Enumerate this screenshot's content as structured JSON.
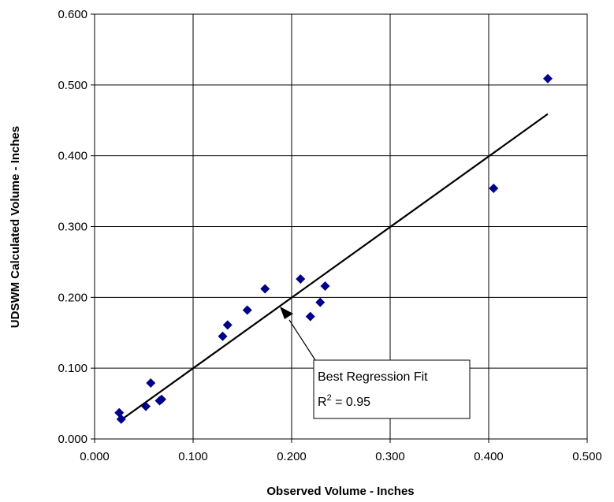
{
  "chart_data": {
    "type": "scatter",
    "title": "",
    "xlabel": "Observed Volume - Inches",
    "ylabel": "UDSWM Calculated Volume - Inches",
    "xlim": [
      0.0,
      0.5
    ],
    "ylim": [
      0.0,
      0.6
    ],
    "grid": true,
    "x_ticks": [
      "0.000",
      "0.100",
      "0.200",
      "0.300",
      "0.400",
      "0.500"
    ],
    "y_ticks": [
      "0.000",
      "0.100",
      "0.200",
      "0.300",
      "0.400",
      "0.500",
      "0.600"
    ],
    "marker_color": "#00008B",
    "points": [
      {
        "x": 0.025,
        "y": 0.037
      },
      {
        "x": 0.027,
        "y": 0.028
      },
      {
        "x": 0.052,
        "y": 0.046
      },
      {
        "x": 0.057,
        "y": 0.079
      },
      {
        "x": 0.066,
        "y": 0.054
      },
      {
        "x": 0.068,
        "y": 0.056
      },
      {
        "x": 0.13,
        "y": 0.145
      },
      {
        "x": 0.135,
        "y": 0.161
      },
      {
        "x": 0.155,
        "y": 0.182
      },
      {
        "x": 0.173,
        "y": 0.212
      },
      {
        "x": 0.209,
        "y": 0.226
      },
      {
        "x": 0.219,
        "y": 0.173
      },
      {
        "x": 0.229,
        "y": 0.193
      },
      {
        "x": 0.234,
        "y": 0.216
      },
      {
        "x": 0.405,
        "y": 0.354
      },
      {
        "x": 0.46,
        "y": 0.509
      }
    ],
    "fit_line": {
      "x": [
        0.027,
        0.46
      ],
      "y": [
        0.027,
        0.459
      ]
    },
    "annotation": {
      "label": "Best Regression Fit",
      "r2_prefix": "R",
      "r2_sup": "2",
      "r2_value": " = 0.95",
      "arrow_target": {
        "x": 0.187,
        "y": 0.18
      }
    }
  }
}
